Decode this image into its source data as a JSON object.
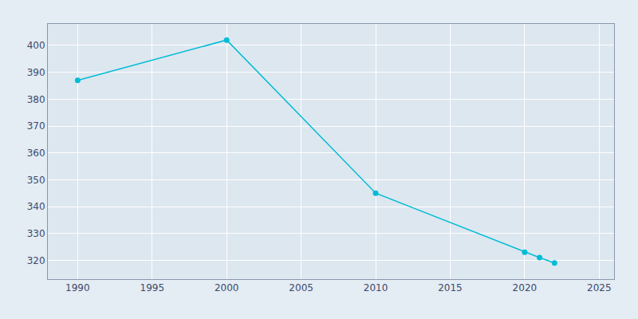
{
  "chart_data": {
    "type": "line",
    "x": [
      1990,
      2000,
      2010,
      2020,
      2021,
      2022
    ],
    "values": [
      387,
      402,
      345,
      323,
      321,
      319
    ],
    "color": "#00BCD4",
    "marker": "circle",
    "xlim": [
      1988,
      2026
    ],
    "ylim": [
      313,
      408
    ],
    "xticks": [
      1990,
      1995,
      2000,
      2005,
      2010,
      2015,
      2020,
      2025
    ],
    "yticks": [
      320,
      330,
      340,
      350,
      360,
      370,
      380,
      390,
      400
    ],
    "grid": true
  }
}
